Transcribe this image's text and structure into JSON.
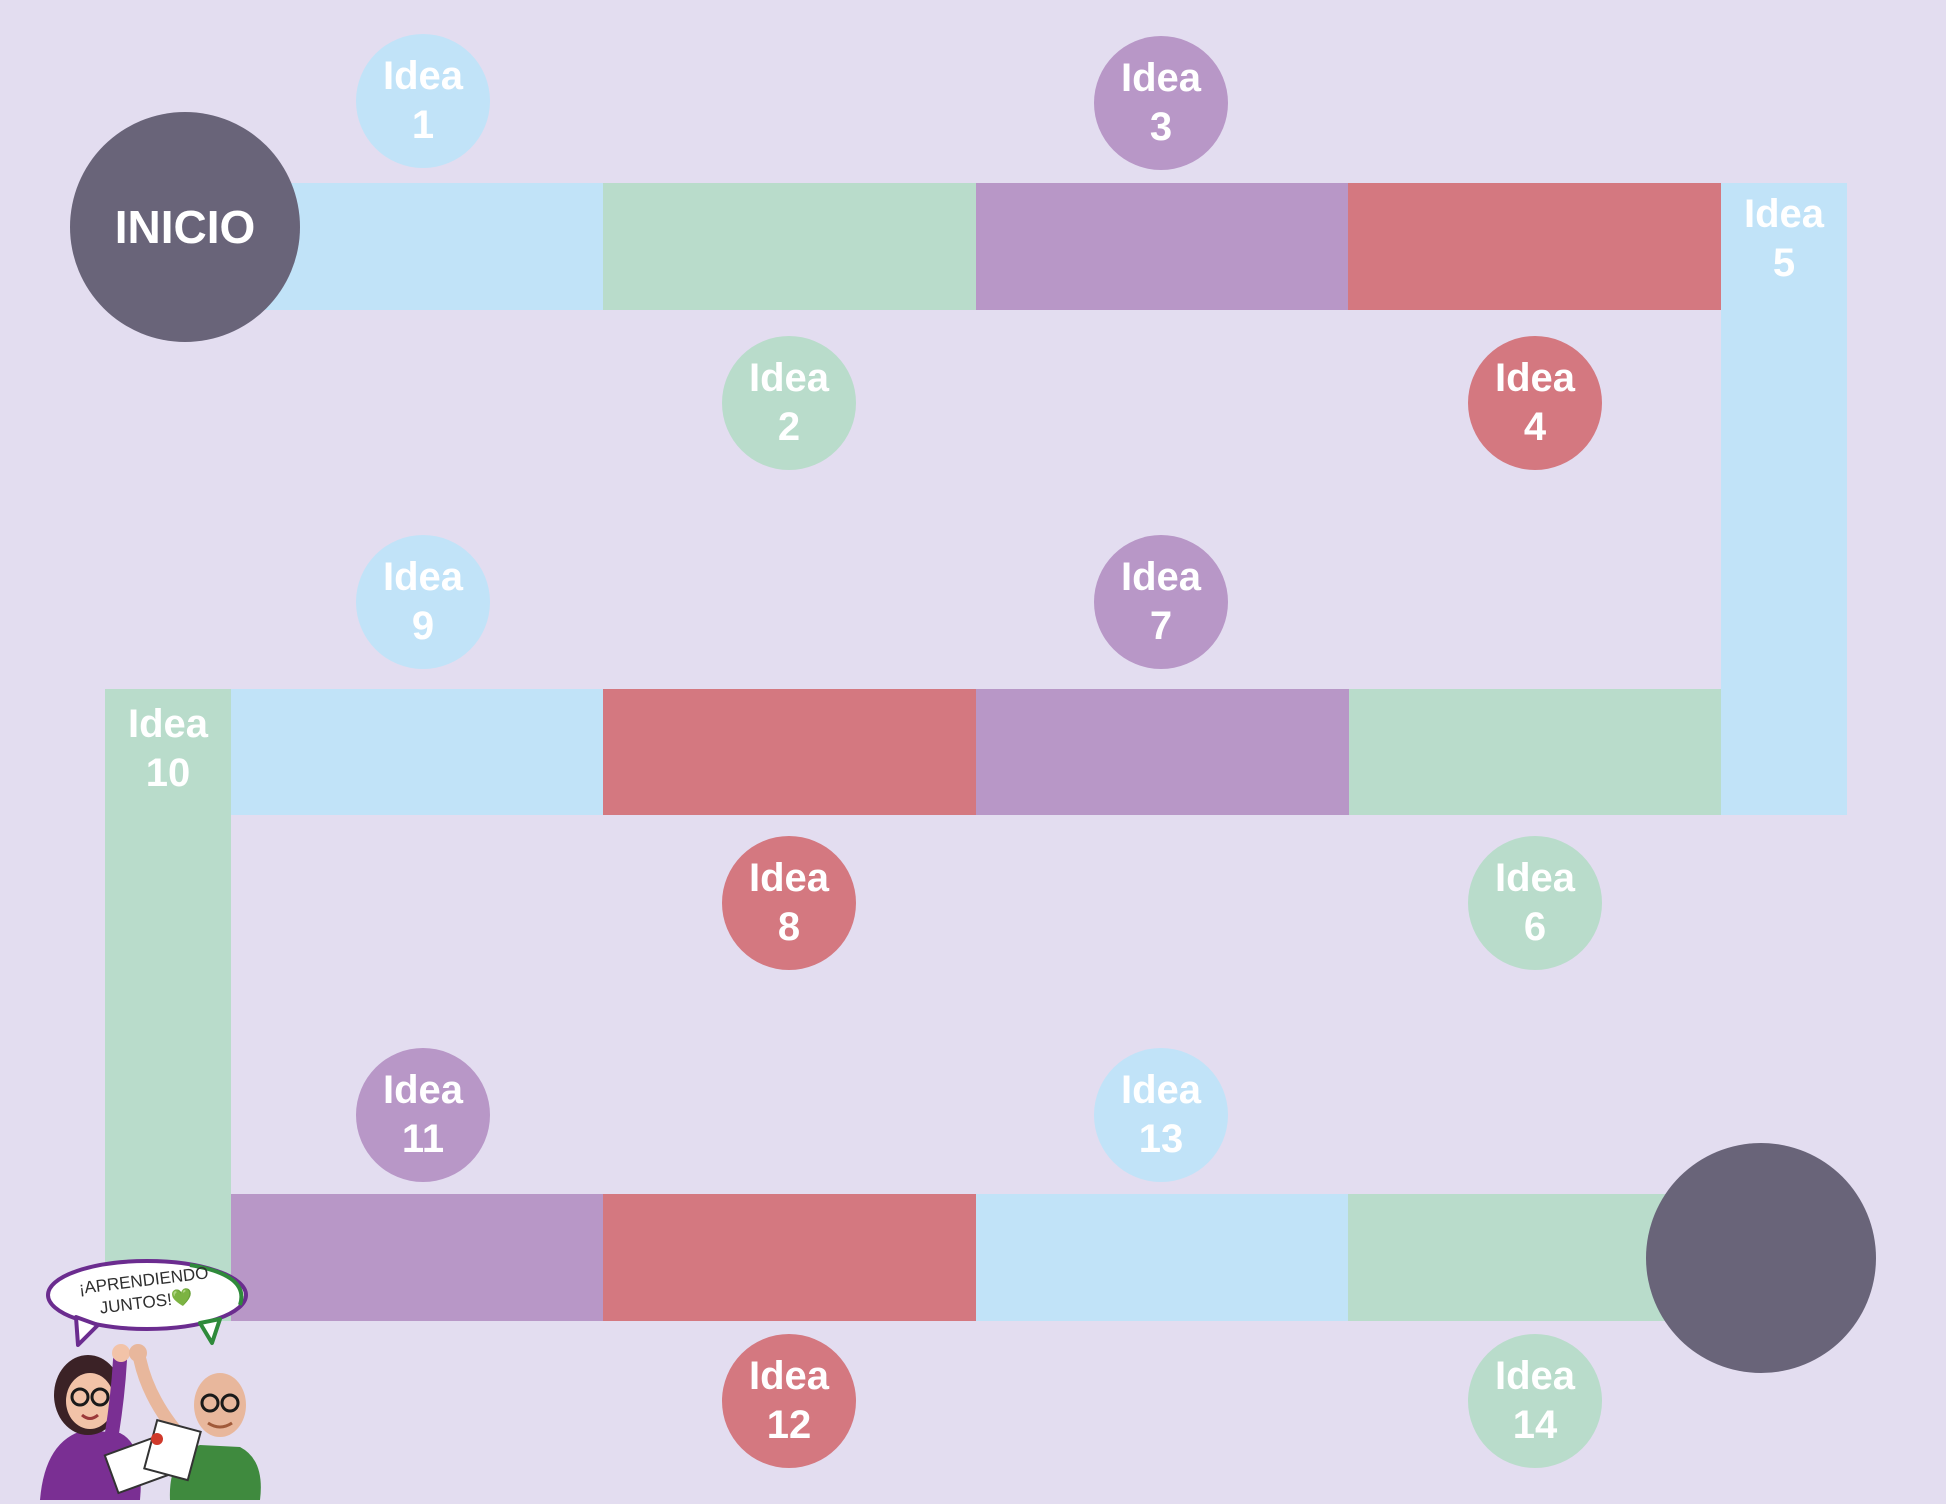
{
  "start": {
    "label": "INICIO"
  },
  "end": {
    "label": ""
  },
  "idea_word": "Idea",
  "ideas": [
    {
      "word": "Idea",
      "num": "1"
    },
    {
      "word": "Idea",
      "num": "2"
    },
    {
      "word": "Idea",
      "num": "3"
    },
    {
      "word": "Idea",
      "num": "4"
    },
    {
      "word": "Idea",
      "num": "5"
    },
    {
      "word": "Idea",
      "num": "6"
    },
    {
      "word": "Idea",
      "num": "7"
    },
    {
      "word": "Idea",
      "num": "8"
    },
    {
      "word": "Idea",
      "num": "9"
    },
    {
      "word": "Idea",
      "num": "10"
    },
    {
      "word": "Idea",
      "num": "11"
    },
    {
      "word": "Idea",
      "num": "12"
    },
    {
      "word": "Idea",
      "num": "13"
    },
    {
      "word": "Idea",
      "num": "14"
    }
  ],
  "colors": {
    "background": "#e3ddf0",
    "blue": "#c1e3f8",
    "green": "#b9dccb",
    "purple": "#b897c7",
    "red": "#d47880",
    "dark": "#696479"
  },
  "mascot": {
    "speech_line1": "¡APRENDIENDO",
    "speech_line2": "JUNTOS!💚"
  }
}
